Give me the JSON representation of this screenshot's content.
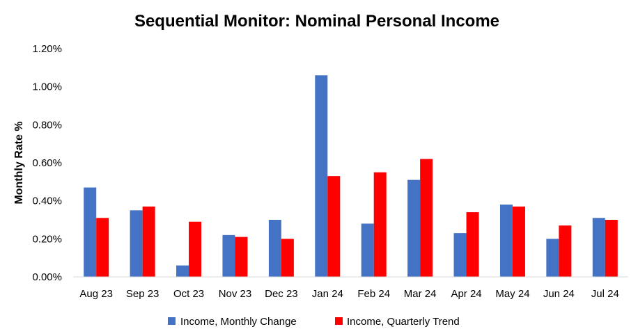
{
  "chart_data": {
    "type": "bar",
    "title": "Sequential Monitor: Nominal Personal Income",
    "xlabel": "",
    "ylabel": "Monthly Rate %",
    "ylim": [
      0,
      1.2
    ],
    "yticks": [
      "0.00%",
      "0.20%",
      "0.40%",
      "0.60%",
      "0.80%",
      "1.00%",
      "1.20%"
    ],
    "ytick_values": [
      0,
      0.2,
      0.4,
      0.6,
      0.8,
      1.0,
      1.2
    ],
    "grid": false,
    "legend_position": "bottom",
    "categories": [
      "Aug 23",
      "Sep 23",
      "Oct 23",
      "Nov 23",
      "Dec 23",
      "Jan 24",
      "Feb 24",
      "Mar 24",
      "Apr 24",
      "May 24",
      "Jun 24",
      "Jul 24"
    ],
    "series": [
      {
        "name": "Income, Monthly Change",
        "color": "#4472C4",
        "values": [
          0.47,
          0.35,
          0.06,
          0.22,
          0.3,
          1.06,
          0.28,
          0.51,
          0.23,
          0.38,
          0.2,
          0.31
        ]
      },
      {
        "name": "Income, Quarterly Trend",
        "color": "#FF0000",
        "values": [
          0.31,
          0.37,
          0.29,
          0.21,
          0.2,
          0.53,
          0.55,
          0.62,
          0.34,
          0.37,
          0.27,
          0.3
        ]
      }
    ]
  }
}
